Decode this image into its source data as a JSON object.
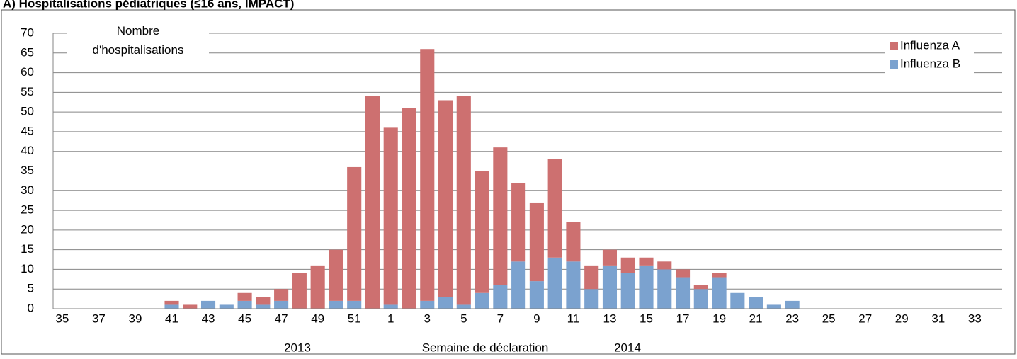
{
  "chart_data": {
    "type": "stacked_bar",
    "title": "A) Hospitalisations pédiatriques (≤16 ans, IMPACT)",
    "y_label": "Nombre d'hospitalisations",
    "x_label": "Semaine de déclaration",
    "year_labels": [
      "2013",
      "2014"
    ],
    "categories": [
      "35",
      null,
      "37",
      null,
      "39",
      null,
      "41",
      null,
      "43",
      null,
      "45",
      null,
      "47",
      null,
      "49",
      null,
      "51",
      null,
      "1",
      null,
      "3",
      null,
      "5",
      null,
      "7",
      null,
      "9",
      null,
      "11",
      null,
      "13",
      null,
      "15",
      null,
      "17",
      null,
      "19",
      null,
      "21",
      null,
      "23",
      null,
      "25",
      null,
      "27",
      null,
      "29",
      null,
      "31",
      null,
      "33",
      null
    ],
    "series": [
      {
        "name": "Influenza A",
        "color": "#cd7070",
        "values": [
          0,
          0,
          0,
          0,
          0,
          0,
          1,
          1,
          0,
          0,
          2,
          2,
          3,
          9,
          11,
          13,
          34,
          54,
          45,
          51,
          64,
          50,
          53,
          31,
          35,
          20,
          20,
          25,
          10,
          6,
          4,
          4,
          2,
          2,
          2,
          1,
          1,
          0,
          0,
          0,
          0,
          0,
          0,
          0,
          0,
          0,
          0,
          0,
          0,
          0,
          0,
          0
        ]
      },
      {
        "name": "Influenza B",
        "color": "#7ba2cf",
        "values": [
          0,
          0,
          0,
          0,
          0,
          0,
          1,
          0,
          2,
          1,
          2,
          1,
          2,
          0,
          0,
          2,
          2,
          0,
          1,
          0,
          2,
          3,
          1,
          4,
          6,
          12,
          7,
          13,
          12,
          5,
          11,
          9,
          11,
          10,
          8,
          5,
          8,
          4,
          3,
          1,
          2,
          0,
          0,
          0,
          0,
          0,
          0,
          0,
          0,
          0,
          0,
          0
        ]
      }
    ],
    "ylim": [
      0,
      70
    ],
    "yticks": [
      0,
      5,
      10,
      15,
      20,
      25,
      30,
      35,
      40,
      45,
      50,
      55,
      60,
      65,
      70
    ],
    "grid": true,
    "legend": "top-right"
  }
}
